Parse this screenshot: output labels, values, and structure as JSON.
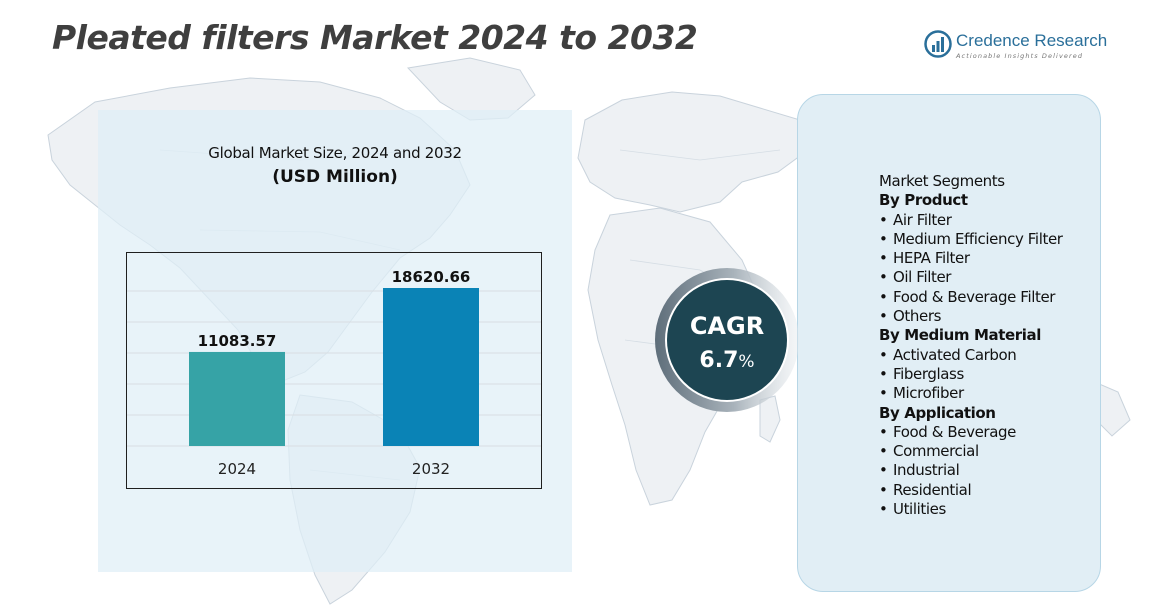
{
  "header": {
    "title": "Pleated filters Market 2024 to 2032"
  },
  "brand": {
    "name": "Credence Research",
    "tagline": "Actionable Insights Delivered",
    "color": "#2a6f9a"
  },
  "chart_data": {
    "type": "bar",
    "subtitle": "Global Market Size, 2024 and 2032",
    "unit": "(USD Million)",
    "categories": [
      "2024",
      "2032"
    ],
    "values": [
      11083.57,
      18620.66
    ],
    "value_labels": [
      "11083.57",
      "18620.66"
    ],
    "colors": [
      "#36a3a6",
      "#0a83b6"
    ],
    "grid": true,
    "legend": "none"
  },
  "cagr": {
    "label": "CAGR",
    "value": "6.7",
    "unit": "%"
  },
  "segments": {
    "heading": "Market Segments",
    "groups": [
      {
        "title": "By Product",
        "items": [
          "Air Filter",
          "Medium Efficiency Filter",
          "HEPA Filter",
          "Oil Filter",
          "Food & Beverage Filter",
          "Others"
        ]
      },
      {
        "title": "By Medium Material",
        "items": [
          "Activated Carbon",
          "Fiberglass",
          "Microfiber"
        ]
      },
      {
        "title": "By Application",
        "items": [
          "Food & Beverage",
          "Commercial",
          "Industrial",
          "Residential",
          "Utilities"
        ]
      }
    ]
  }
}
